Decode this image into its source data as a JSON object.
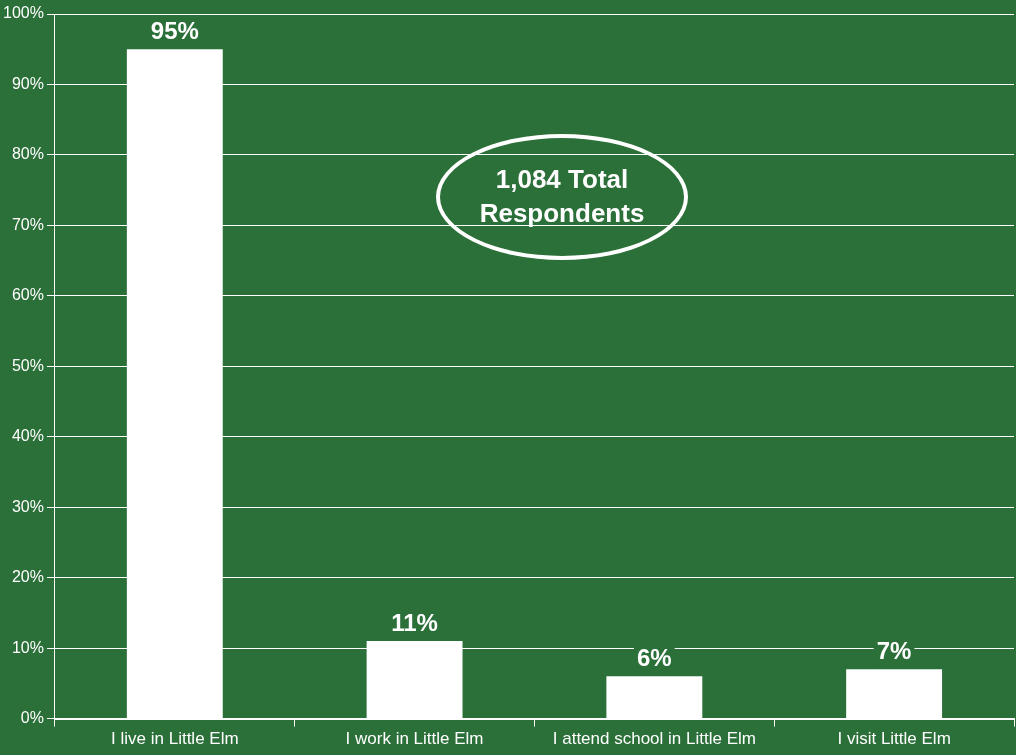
{
  "chart_data": {
    "type": "bar",
    "categories": [
      "I live in Little Elm",
      "I work in Little Elm",
      "I attend school in Little Elm",
      "I visit Little Elm"
    ],
    "values": [
      95,
      11,
      6,
      7
    ],
    "color": "#ffffff",
    "ylim": [
      0,
      100
    ],
    "yticks": [
      {
        "value": 0,
        "label": "0%"
      },
      {
        "value": 10,
        "label": "10%"
      },
      {
        "value": 20,
        "label": "20%"
      },
      {
        "value": 30,
        "label": "30%"
      },
      {
        "value": 40,
        "label": "40%"
      },
      {
        "value": 50,
        "label": "50%"
      },
      {
        "value": 60,
        "label": "60%"
      },
      {
        "value": 70,
        "label": "70%"
      },
      {
        "value": 80,
        "label": "80%"
      },
      {
        "value": 90,
        "label": "90%"
      },
      {
        "value": 100,
        "label": "100%"
      }
    ],
    "value_labels": [
      "95%",
      "11%",
      "6%",
      "7%"
    ],
    "grid": "y",
    "legend": false,
    "annotations": [
      "1,084 Total Respondents"
    ]
  }
}
